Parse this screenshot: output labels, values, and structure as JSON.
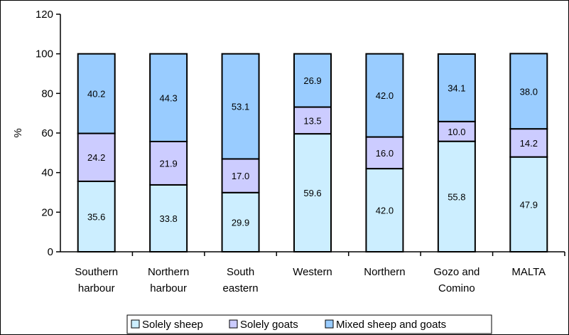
{
  "chart_data": {
    "type": "bar",
    "stacked": true,
    "title": "",
    "xlabel": "",
    "ylabel": "%",
    "ylim": [
      0,
      120
    ],
    "yticks": [
      0,
      20,
      40,
      60,
      80,
      100,
      120
    ],
    "grid": false,
    "legend_position": "bottom",
    "categories": [
      [
        "Southern",
        "harbour"
      ],
      [
        "Northern",
        "harbour"
      ],
      [
        "South",
        "eastern"
      ],
      [
        "Western"
      ],
      [
        "Northern"
      ],
      [
        "Gozo and",
        "Comino"
      ],
      [
        "MALTA"
      ]
    ],
    "series": [
      {
        "name": "Solely sheep",
        "color": "#cceeff",
        "values": [
          35.6,
          33.8,
          29.9,
          59.6,
          42.0,
          55.8,
          47.9
        ],
        "labels": [
          "35.6",
          "33.8",
          "29.9",
          "59.6",
          "42.0",
          "55.8",
          "47.9"
        ]
      },
      {
        "name": "Solely goats",
        "color": "#ccccff",
        "values": [
          24.2,
          21.9,
          17.0,
          13.5,
          16.0,
          10.0,
          14.2
        ],
        "labels": [
          "24.2",
          "21.9",
          "17.0",
          "13.5",
          "16.0",
          "10.0",
          "14.2"
        ]
      },
      {
        "name": "Mixed sheep and goats",
        "color": "#99ccff",
        "values": [
          40.2,
          44.3,
          53.1,
          26.9,
          42.0,
          34.1,
          38.0
        ],
        "labels": [
          "40.2",
          "44.3",
          "53.1",
          "26.9",
          "42.0",
          "34.1",
          "38.0"
        ]
      }
    ]
  }
}
